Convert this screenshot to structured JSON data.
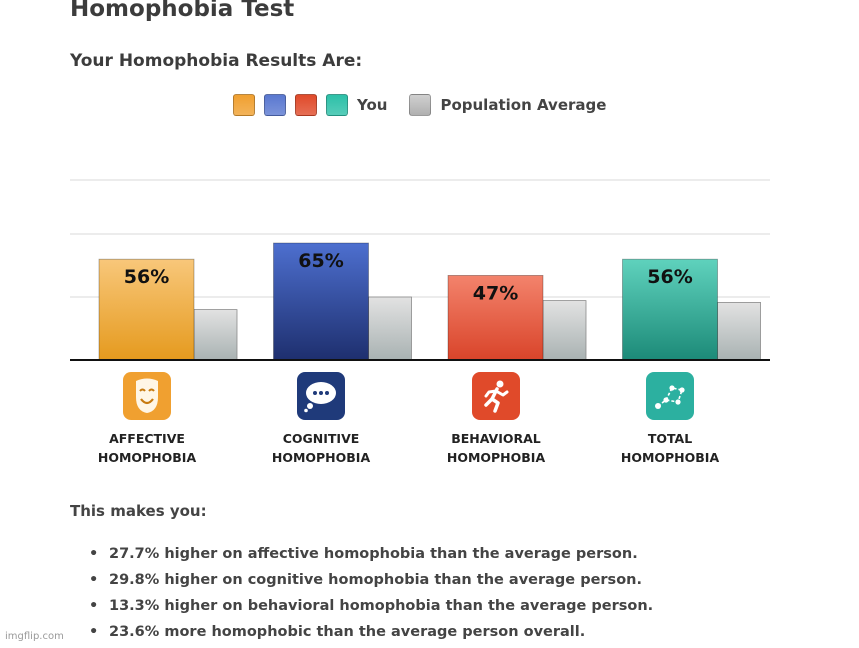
{
  "title": "Homophobia Test",
  "subtitle": "Your Homophobia Results Are:",
  "legend": {
    "you_label": "You",
    "population_label": "Population Average",
    "you_colors": [
      "#f0a030",
      "#5a78d0",
      "#e04a2a",
      "#2cc0a8"
    ],
    "population_color": "#b0b0b0"
  },
  "chart_data": {
    "type": "bar",
    "categories": [
      "AFFECTIVE HOMOPHOBIA",
      "COGNITIVE HOMOPHOBIA",
      "BEHAVIORAL HOMOPHOBIA",
      "TOTAL HOMOPHOBIA"
    ],
    "series": [
      {
        "name": "You",
        "values": [
          56,
          65,
          47,
          56
        ],
        "labels": [
          "56%",
          "65%",
          "47%",
          "56%"
        ]
      },
      {
        "name": "Population Average",
        "values": [
          28,
          35,
          33,
          32
        ]
      }
    ],
    "ylim": [
      0,
      100
    ],
    "grid": true,
    "legend_position": "top-center",
    "title": "",
    "xlabel": "",
    "ylabel": ""
  },
  "categories": [
    {
      "line1": "AFFECTIVE",
      "line2": "HOMOPHOBIA",
      "icon": "mask-icon",
      "color": "#f0a030"
    },
    {
      "line1": "COGNITIVE",
      "line2": "HOMOPHOBIA",
      "icon": "thought-bubble-icon",
      "color": "#1f3a7a"
    },
    {
      "line1": "BEHAVIORAL",
      "line2": "HOMOPHOBIA",
      "icon": "running-person-icon",
      "color": "#e04a2a"
    },
    {
      "line1": "TOTAL",
      "line2": "HOMOPHOBIA",
      "icon": "constellation-icon",
      "color": "#2cb0a0"
    }
  ],
  "summary": {
    "heading": "This makes you:",
    "items": [
      "27.7% higher on affective homophobia than the average person.",
      "29.8% higher on cognitive homophobia than the average person.",
      "13.3% higher on behavioral homophobia than the average person.",
      "23.6% more homophobic than the average person overall."
    ]
  },
  "watermark": "imgflip.com"
}
